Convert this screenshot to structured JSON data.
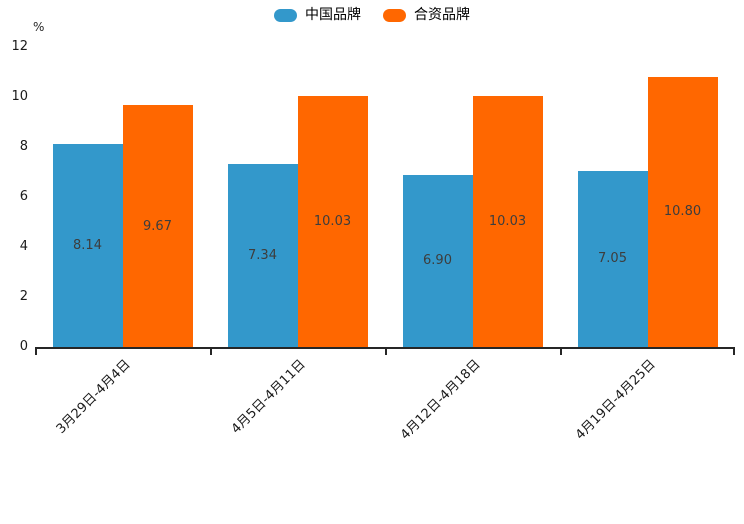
{
  "chart_data": {
    "type": "bar",
    "title": "",
    "legend_position": "top-center",
    "grid": false,
    "value_label_position": "inside-middle",
    "y_axis": {
      "unit": "%",
      "min": 0,
      "max": 12,
      "tick_step": 2,
      "ticks": [
        0,
        2,
        4,
        6,
        8,
        10,
        12
      ]
    },
    "categories": [
      "3月29日-4月4日",
      "4月5日-4月11日",
      "4月12日-4月18日",
      "4月19日-4月25日"
    ],
    "series": [
      {
        "name": "中国品牌",
        "color": "#3398cb",
        "values": [
          8.14,
          7.34,
          6.9,
          7.05
        ],
        "labels": [
          "8.14",
          "7.34",
          "6.90",
          "7.05"
        ]
      },
      {
        "name": "合资品牌",
        "color": "#ff6700",
        "values": [
          9.67,
          10.03,
          10.03,
          10.8
        ],
        "labels": [
          "9.67",
          "10.03",
          "10.03",
          "10.80"
        ]
      }
    ]
  },
  "legend": {
    "items": [
      {
        "label": "中国品牌",
        "color": "#3398cb",
        "key": "china-brands"
      },
      {
        "label": "合资品牌",
        "color": "#ff6700",
        "key": "joint-venture-brands"
      }
    ]
  },
  "style": {
    "background": "#ffffff",
    "axis_color": "#262626",
    "tick_label_color": "#1a1a1a",
    "value_label_color": "#3d3d3d"
  }
}
